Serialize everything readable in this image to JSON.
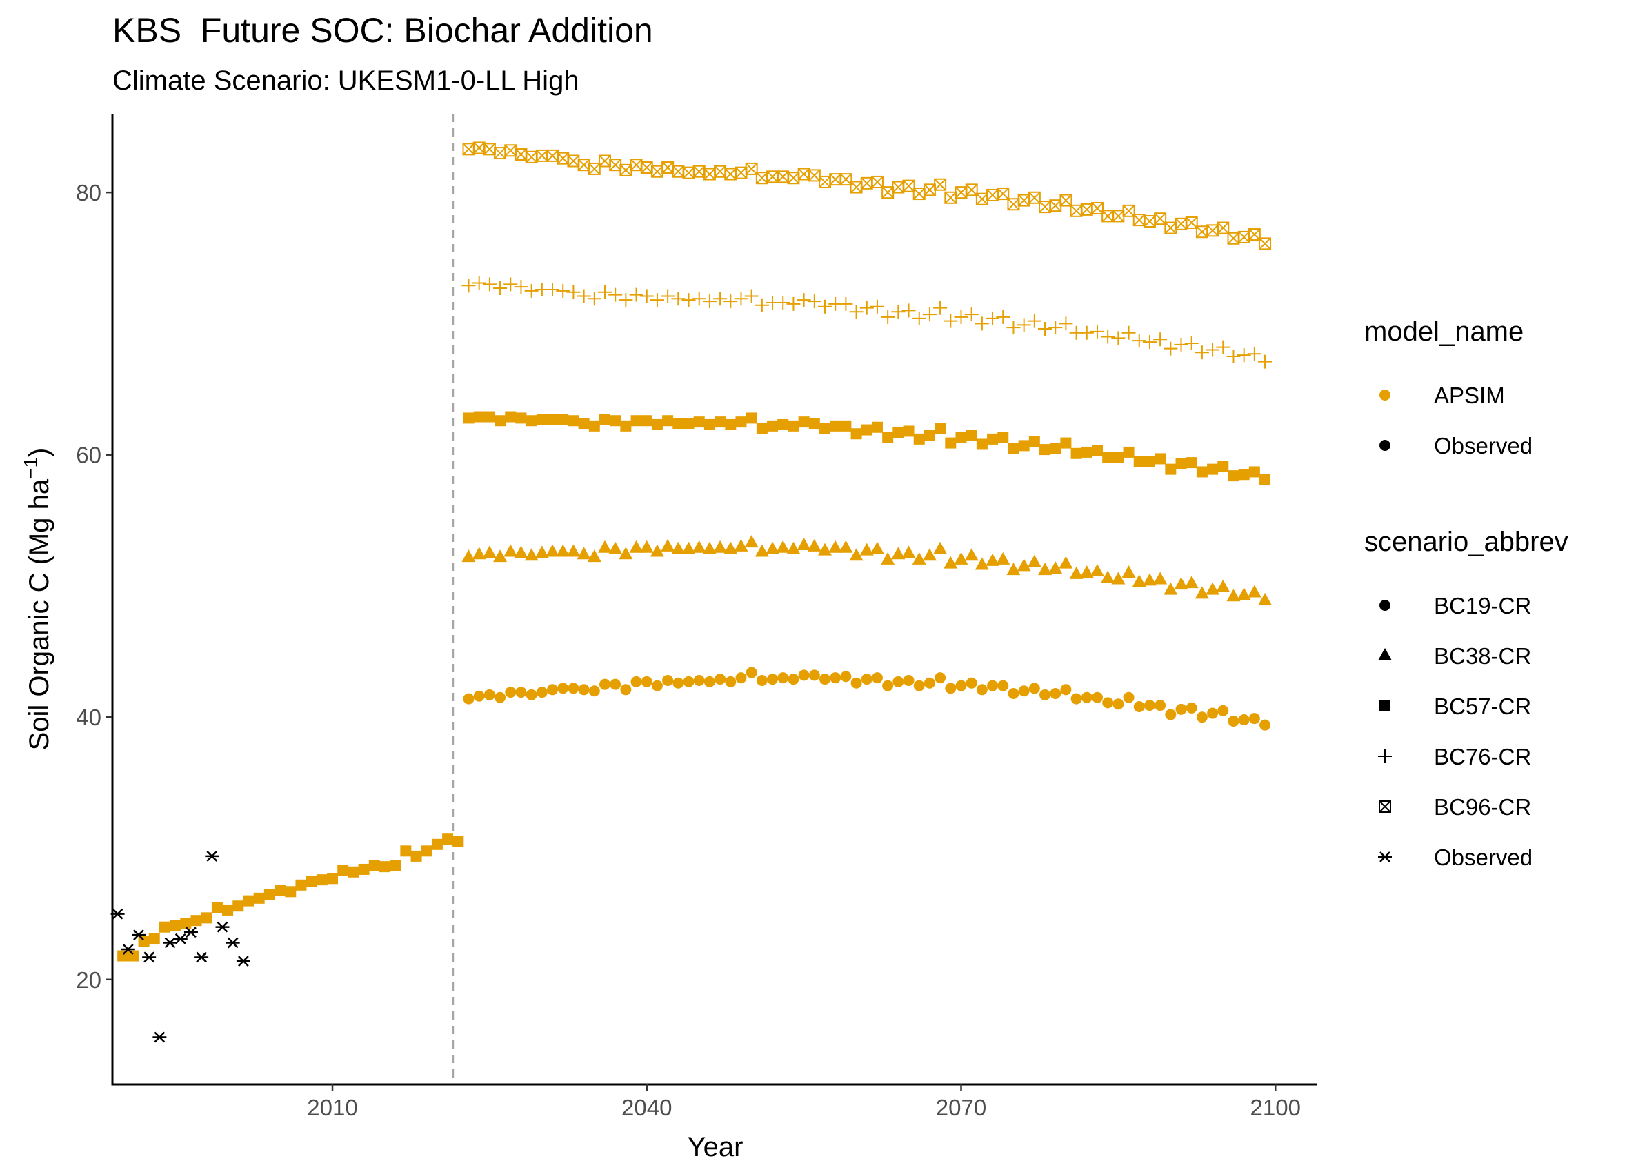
{
  "chart_data": {
    "type": "scatter",
    "title": "KBS  Future SOC: Biochar Addition",
    "subtitle": "Climate Scenario: UKESM1-0-LL High",
    "xlabel": "Year",
    "ylabel_main": "Soil Organic C (Mg ha",
    "ylabel_sup": "−1",
    "ylabel_close": ")",
    "xlim": [
      1989,
      2104
    ],
    "ylim": [
      12,
      86
    ],
    "x_ticks": [
      2010,
      2040,
      2070,
      2100
    ],
    "y_ticks": [
      20,
      40,
      60,
      80
    ],
    "vline_x": 2021.5,
    "grid": false,
    "legend_position": "right",
    "colors": {
      "apsim": "#E69F00",
      "observed": "#000000",
      "vline": "#a6a6a6"
    },
    "legends": [
      {
        "title": "model_name",
        "items": [
          {
            "label": "APSIM",
            "shape": "circle",
            "color": "#E69F00"
          },
          {
            "label": "Observed",
            "shape": "circle",
            "color": "#000000"
          }
        ]
      },
      {
        "title": "scenario_abbrev",
        "items": [
          {
            "label": "BC19-CR",
            "shape": "circle",
            "color": "#000000"
          },
          {
            "label": "BC38-CR",
            "shape": "triangle",
            "color": "#000000"
          },
          {
            "label": "BC57-CR",
            "shape": "square",
            "color": "#000000"
          },
          {
            "label": "BC76-CR",
            "shape": "plus",
            "color": "#000000"
          },
          {
            "label": "BC96-CR",
            "shape": "boxx",
            "color": "#000000"
          },
          {
            "label": "Observed",
            "shape": "asterisk",
            "color": "#000000"
          }
        ]
      }
    ],
    "series": [
      {
        "name": "Observed",
        "model": "Observed",
        "shape": "asterisk",
        "x": [
          1989.5,
          1990.5,
          1991.5,
          1992.5,
          1993.5,
          1994.5,
          1995.5,
          1996.5,
          1997.5,
          1998.5,
          1999.5,
          2000.5,
          2001.5
        ],
        "y": [
          25.0,
          22.3,
          23.4,
          21.7,
          15.6,
          22.8,
          23.1,
          23.6,
          21.7,
          29.4,
          24.0,
          22.8,
          21.4
        ]
      },
      {
        "name": "BC19-CR",
        "model": "APSIM",
        "shape": "square",
        "x": [
          1990,
          1991,
          1992,
          1993,
          1994,
          1995,
          1996,
          1997,
          1998,
          1999,
          2000,
          2001,
          2002,
          2003,
          2004,
          2005,
          2006,
          2007,
          2008,
          2009,
          2010,
          2011,
          2012,
          2013,
          2014,
          2015,
          2016,
          2017,
          2018,
          2019,
          2020,
          2021,
          2022
        ],
        "y": [
          21.8,
          21.8,
          22.9,
          23.1,
          24.0,
          24.1,
          24.3,
          24.5,
          24.7,
          25.5,
          25.3,
          25.6,
          26.0,
          26.2,
          26.5,
          26.8,
          26.7,
          27.2,
          27.5,
          27.6,
          27.7,
          28.3,
          28.2,
          28.4,
          28.7,
          28.6,
          28.7,
          29.8,
          29.4,
          29.8,
          30.3,
          30.7,
          30.5
        ]
      },
      {
        "name": "BC19-CR",
        "model": "APSIM",
        "shape": "circle",
        "x": [
          2023,
          2024,
          2025,
          2026,
          2027,
          2028,
          2029,
          2030,
          2031,
          2032,
          2033,
          2034,
          2035,
          2036,
          2037,
          2038,
          2039,
          2040,
          2041,
          2042,
          2043,
          2044,
          2045,
          2046,
          2047,
          2048,
          2049,
          2050,
          2051,
          2052,
          2053,
          2054,
          2055,
          2056,
          2057,
          2058,
          2059,
          2060,
          2061,
          2062,
          2063,
          2064,
          2065,
          2066,
          2067,
          2068,
          2069,
          2070,
          2071,
          2072,
          2073,
          2074,
          2075,
          2076,
          2077,
          2078,
          2079,
          2080,
          2081,
          2082,
          2083,
          2084,
          2085,
          2086,
          2087,
          2088,
          2089,
          2090,
          2091,
          2092,
          2093,
          2094,
          2095,
          2096,
          2097,
          2098,
          2099
        ],
        "y": [
          41.4,
          41.6,
          41.7,
          41.5,
          41.9,
          41.9,
          41.7,
          41.9,
          42.1,
          42.2,
          42.2,
          42.1,
          42.0,
          42.5,
          42.5,
          42.1,
          42.7,
          42.7,
          42.4,
          42.8,
          42.6,
          42.7,
          42.8,
          42.7,
          42.9,
          42.7,
          43.0,
          43.4,
          42.8,
          42.9,
          43.0,
          42.9,
          43.2,
          43.2,
          42.9,
          43.0,
          43.1,
          42.6,
          42.9,
          43.0,
          42.4,
          42.7,
          42.8,
          42.4,
          42.6,
          43.0,
          42.2,
          42.4,
          42.6,
          42.1,
          42.4,
          42.4,
          41.8,
          42.0,
          42.2,
          41.7,
          41.8,
          42.1,
          41.4,
          41.5,
          41.5,
          41.1,
          41.0,
          41.5,
          40.8,
          40.9,
          40.9,
          40.2,
          40.6,
          40.7,
          40.0,
          40.3,
          40.5,
          39.7,
          39.8,
          39.9,
          39.4
        ]
      },
      {
        "name": "BC38-CR",
        "model": "APSIM",
        "shape": "triangle",
        "x": [
          2023,
          2024,
          2025,
          2026,
          2027,
          2028,
          2029,
          2030,
          2031,
          2032,
          2033,
          2034,
          2035,
          2036,
          2037,
          2038,
          2039,
          2040,
          2041,
          2042,
          2043,
          2044,
          2045,
          2046,
          2047,
          2048,
          2049,
          2050,
          2051,
          2052,
          2053,
          2054,
          2055,
          2056,
          2057,
          2058,
          2059,
          2060,
          2061,
          2062,
          2063,
          2064,
          2065,
          2066,
          2067,
          2068,
          2069,
          2070,
          2071,
          2072,
          2073,
          2074,
          2075,
          2076,
          2077,
          2078,
          2079,
          2080,
          2081,
          2082,
          2083,
          2084,
          2085,
          2086,
          2087,
          2088,
          2089,
          2090,
          2091,
          2092,
          2093,
          2094,
          2095,
          2096,
          2097,
          2098,
          2099
        ],
        "y": [
          52.2,
          52.4,
          52.5,
          52.2,
          52.6,
          52.5,
          52.3,
          52.5,
          52.6,
          52.6,
          52.6,
          52.4,
          52.2,
          52.9,
          52.8,
          52.4,
          52.9,
          52.9,
          52.6,
          53.0,
          52.8,
          52.8,
          52.9,
          52.8,
          52.9,
          52.8,
          53.0,
          53.3,
          52.6,
          52.8,
          52.9,
          52.8,
          53.1,
          53.0,
          52.7,
          52.9,
          52.9,
          52.3,
          52.7,
          52.8,
          52.0,
          52.4,
          52.5,
          52.0,
          52.3,
          52.8,
          51.7,
          52.0,
          52.3,
          51.6,
          51.9,
          52.0,
          51.2,
          51.5,
          51.8,
          51.2,
          51.3,
          51.7,
          50.9,
          51.0,
          51.1,
          50.6,
          50.5,
          51.0,
          50.3,
          50.4,
          50.5,
          49.7,
          50.1,
          50.2,
          49.4,
          49.7,
          49.9,
          49.2,
          49.3,
          49.5,
          48.9
        ]
      },
      {
        "name": "BC57-CR",
        "model": "APSIM",
        "shape": "square",
        "x": [
          2023,
          2024,
          2025,
          2026,
          2027,
          2028,
          2029,
          2030,
          2031,
          2032,
          2033,
          2034,
          2035,
          2036,
          2037,
          2038,
          2039,
          2040,
          2041,
          2042,
          2043,
          2044,
          2045,
          2046,
          2047,
          2048,
          2049,
          2050,
          2051,
          2052,
          2053,
          2054,
          2055,
          2056,
          2057,
          2058,
          2059,
          2060,
          2061,
          2062,
          2063,
          2064,
          2065,
          2066,
          2067,
          2068,
          2069,
          2070,
          2071,
          2072,
          2073,
          2074,
          2075,
          2076,
          2077,
          2078,
          2079,
          2080,
          2081,
          2082,
          2083,
          2084,
          2085,
          2086,
          2087,
          2088,
          2089,
          2090,
          2091,
          2092,
          2093,
          2094,
          2095,
          2096,
          2097,
          2098,
          2099
        ],
        "y": [
          62.8,
          62.9,
          62.9,
          62.6,
          62.9,
          62.8,
          62.6,
          62.7,
          62.7,
          62.7,
          62.6,
          62.4,
          62.2,
          62.7,
          62.6,
          62.2,
          62.6,
          62.6,
          62.3,
          62.6,
          62.4,
          62.4,
          62.5,
          62.3,
          62.5,
          62.3,
          62.5,
          62.8,
          62.0,
          62.2,
          62.3,
          62.2,
          62.5,
          62.4,
          62.0,
          62.2,
          62.2,
          61.6,
          61.9,
          62.1,
          61.3,
          61.7,
          61.8,
          61.2,
          61.5,
          62.0,
          60.9,
          61.3,
          61.5,
          60.8,
          61.2,
          61.3,
          60.5,
          60.7,
          61.0,
          60.4,
          60.5,
          60.9,
          60.1,
          60.2,
          60.3,
          59.8,
          59.8,
          60.2,
          59.5,
          59.5,
          59.7,
          58.9,
          59.3,
          59.4,
          58.7,
          58.9,
          59.1,
          58.4,
          58.5,
          58.7,
          58.1
        ]
      },
      {
        "name": "BC76-CR",
        "model": "APSIM",
        "shape": "plus",
        "x": [
          2023,
          2024,
          2025,
          2026,
          2027,
          2028,
          2029,
          2030,
          2031,
          2032,
          2033,
          2034,
          2035,
          2036,
          2037,
          2038,
          2039,
          2040,
          2041,
          2042,
          2043,
          2044,
          2045,
          2046,
          2047,
          2048,
          2049,
          2050,
          2051,
          2052,
          2053,
          2054,
          2055,
          2056,
          2057,
          2058,
          2059,
          2060,
          2061,
          2062,
          2063,
          2064,
          2065,
          2066,
          2067,
          2068,
          2069,
          2070,
          2071,
          2072,
          2073,
          2074,
          2075,
          2076,
          2077,
          2078,
          2079,
          2080,
          2081,
          2082,
          2083,
          2084,
          2085,
          2086,
          2087,
          2088,
          2089,
          2090,
          2091,
          2092,
          2093,
          2094,
          2095,
          2096,
          2097,
          2098,
          2099
        ],
        "y": [
          72.9,
          73.1,
          73.0,
          72.7,
          73.0,
          72.8,
          72.5,
          72.6,
          72.6,
          72.5,
          72.4,
          72.1,
          71.9,
          72.4,
          72.2,
          71.8,
          72.2,
          72.1,
          71.8,
          72.1,
          71.9,
          71.8,
          71.9,
          71.7,
          71.9,
          71.7,
          71.9,
          72.1,
          71.4,
          71.6,
          71.6,
          71.5,
          71.8,
          71.7,
          71.3,
          71.5,
          71.5,
          70.9,
          71.2,
          71.3,
          70.5,
          70.9,
          71.0,
          70.4,
          70.7,
          71.2,
          70.2,
          70.5,
          70.7,
          70.0,
          70.4,
          70.5,
          69.7,
          69.9,
          70.2,
          69.6,
          69.7,
          70.0,
          69.3,
          69.3,
          69.4,
          69.0,
          68.9,
          69.3,
          68.7,
          68.6,
          68.8,
          68.1,
          68.4,
          68.5,
          67.8,
          68.0,
          68.2,
          67.5,
          67.6,
          67.7,
          67.1
        ]
      },
      {
        "name": "BC96-CR",
        "model": "APSIM",
        "shape": "boxx",
        "x": [
          2023,
          2024,
          2025,
          2026,
          2027,
          2028,
          2029,
          2030,
          2031,
          2032,
          2033,
          2034,
          2035,
          2036,
          2037,
          2038,
          2039,
          2040,
          2041,
          2042,
          2043,
          2044,
          2045,
          2046,
          2047,
          2048,
          2049,
          2050,
          2051,
          2052,
          2053,
          2054,
          2055,
          2056,
          2057,
          2058,
          2059,
          2060,
          2061,
          2062,
          2063,
          2064,
          2065,
          2066,
          2067,
          2068,
          2069,
          2070,
          2071,
          2072,
          2073,
          2074,
          2075,
          2076,
          2077,
          2078,
          2079,
          2080,
          2081,
          2082,
          2083,
          2084,
          2085,
          2086,
          2087,
          2088,
          2089,
          2090,
          2091,
          2092,
          2093,
          2094,
          2095,
          2096,
          2097,
          2098,
          2099
        ],
        "y": [
          83.3,
          83.4,
          83.3,
          83.0,
          83.2,
          82.9,
          82.7,
          82.8,
          82.8,
          82.6,
          82.4,
          82.1,
          81.8,
          82.4,
          82.1,
          81.7,
          82.1,
          81.9,
          81.6,
          81.9,
          81.6,
          81.5,
          81.6,
          81.4,
          81.6,
          81.4,
          81.5,
          81.8,
          81.1,
          81.2,
          81.2,
          81.1,
          81.4,
          81.3,
          80.8,
          81.0,
          81.0,
          80.4,
          80.7,
          80.8,
          80.0,
          80.4,
          80.5,
          79.9,
          80.2,
          80.6,
          79.6,
          80.0,
          80.2,
          79.5,
          79.8,
          79.9,
          79.1,
          79.4,
          79.6,
          78.9,
          79.0,
          79.4,
          78.6,
          78.7,
          78.8,
          78.2,
          78.2,
          78.6,
          77.9,
          77.8,
          78.0,
          77.3,
          77.6,
          77.7,
          77.0,
          77.1,
          77.3,
          76.5,
          76.6,
          76.8,
          76.1
        ]
      }
    ]
  }
}
